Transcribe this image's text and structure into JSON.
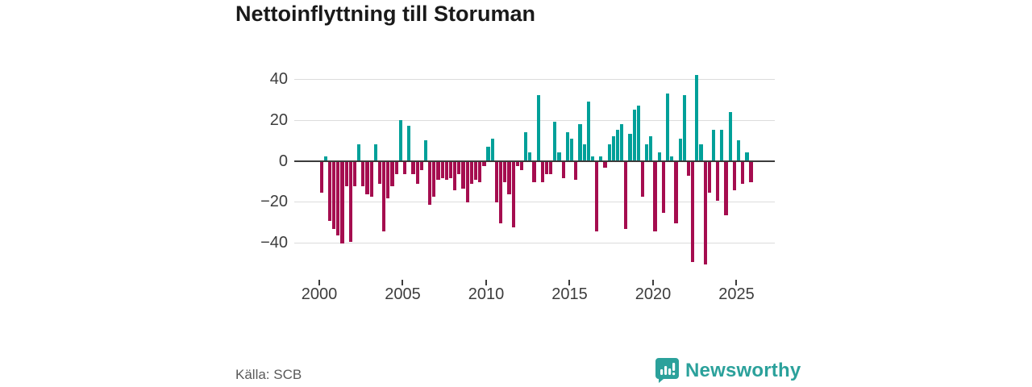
{
  "title": "Nettoinflyttning till Storuman",
  "source": "Källa: SCB",
  "brand": {
    "name": "Newsworthy"
  },
  "colors": {
    "positive": "#00a099",
    "negative": "#a50d4f",
    "grid": "#dcdcdc",
    "zero_line": "#3b3b3b",
    "title_text": "#1a1a1a",
    "axis_text": "#3d3d3d",
    "source_text": "#5a5a5a",
    "brand_teal": "#2ba19b"
  },
  "chart_data": {
    "type": "bar",
    "title": "Nettoinflyttning till Storuman",
    "xlabel": "",
    "ylabel": "",
    "frequency": "quarterly",
    "start_quarter": "2000Q1",
    "end_quarter": "2025Q4",
    "legend": "none",
    "grid": "horizontal",
    "ylim": [
      -52,
      45
    ],
    "y_ticks": [
      {
        "value": 40,
        "label": "40"
      },
      {
        "value": 20,
        "label": "20"
      },
      {
        "value": 0,
        "label": "0"
      },
      {
        "value": -20,
        "label": "−20"
      },
      {
        "value": -40,
        "label": "−40"
      }
    ],
    "x_ticks": [
      {
        "value": 2000,
        "label": "2000"
      },
      {
        "value": 2005,
        "label": "2005"
      },
      {
        "value": 2010,
        "label": "2010"
      },
      {
        "value": 2015,
        "label": "2015"
      },
      {
        "value": 2020,
        "label": "2020"
      },
      {
        "value": 2025,
        "label": "2025"
      }
    ],
    "values": [
      -15,
      2,
      -29,
      -33,
      -36,
      -40,
      -12,
      -39,
      -12,
      8,
      -12,
      -16,
      -17,
      8,
      -11,
      -34,
      -18,
      -12,
      -6,
      20,
      -6,
      17,
      -6,
      -11,
      -4,
      10,
      -21,
      -17,
      -9,
      -8,
      -9,
      -8,
      -14,
      -6,
      -13,
      -20,
      -11,
      -9,
      -10,
      -2,
      7,
      11,
      -20,
      -30,
      -10,
      -16,
      -32,
      -2,
      -4,
      14,
      4,
      -10,
      32,
      -10,
      -6,
      -6,
      19,
      4,
      -8,
      14,
      11,
      -9,
      18,
      8,
      29,
      2,
      -34,
      2,
      -3,
      8,
      12,
      15,
      18,
      -33,
      13,
      25,
      27,
      -17,
      8,
      12,
      -34,
      4,
      -25,
      33,
      2,
      -30,
      11,
      32,
      -7,
      -49,
      42,
      8,
      -50,
      -15,
      15,
      -19,
      15,
      -26,
      24,
      -14,
      10,
      -11,
      4,
      -10
    ]
  }
}
